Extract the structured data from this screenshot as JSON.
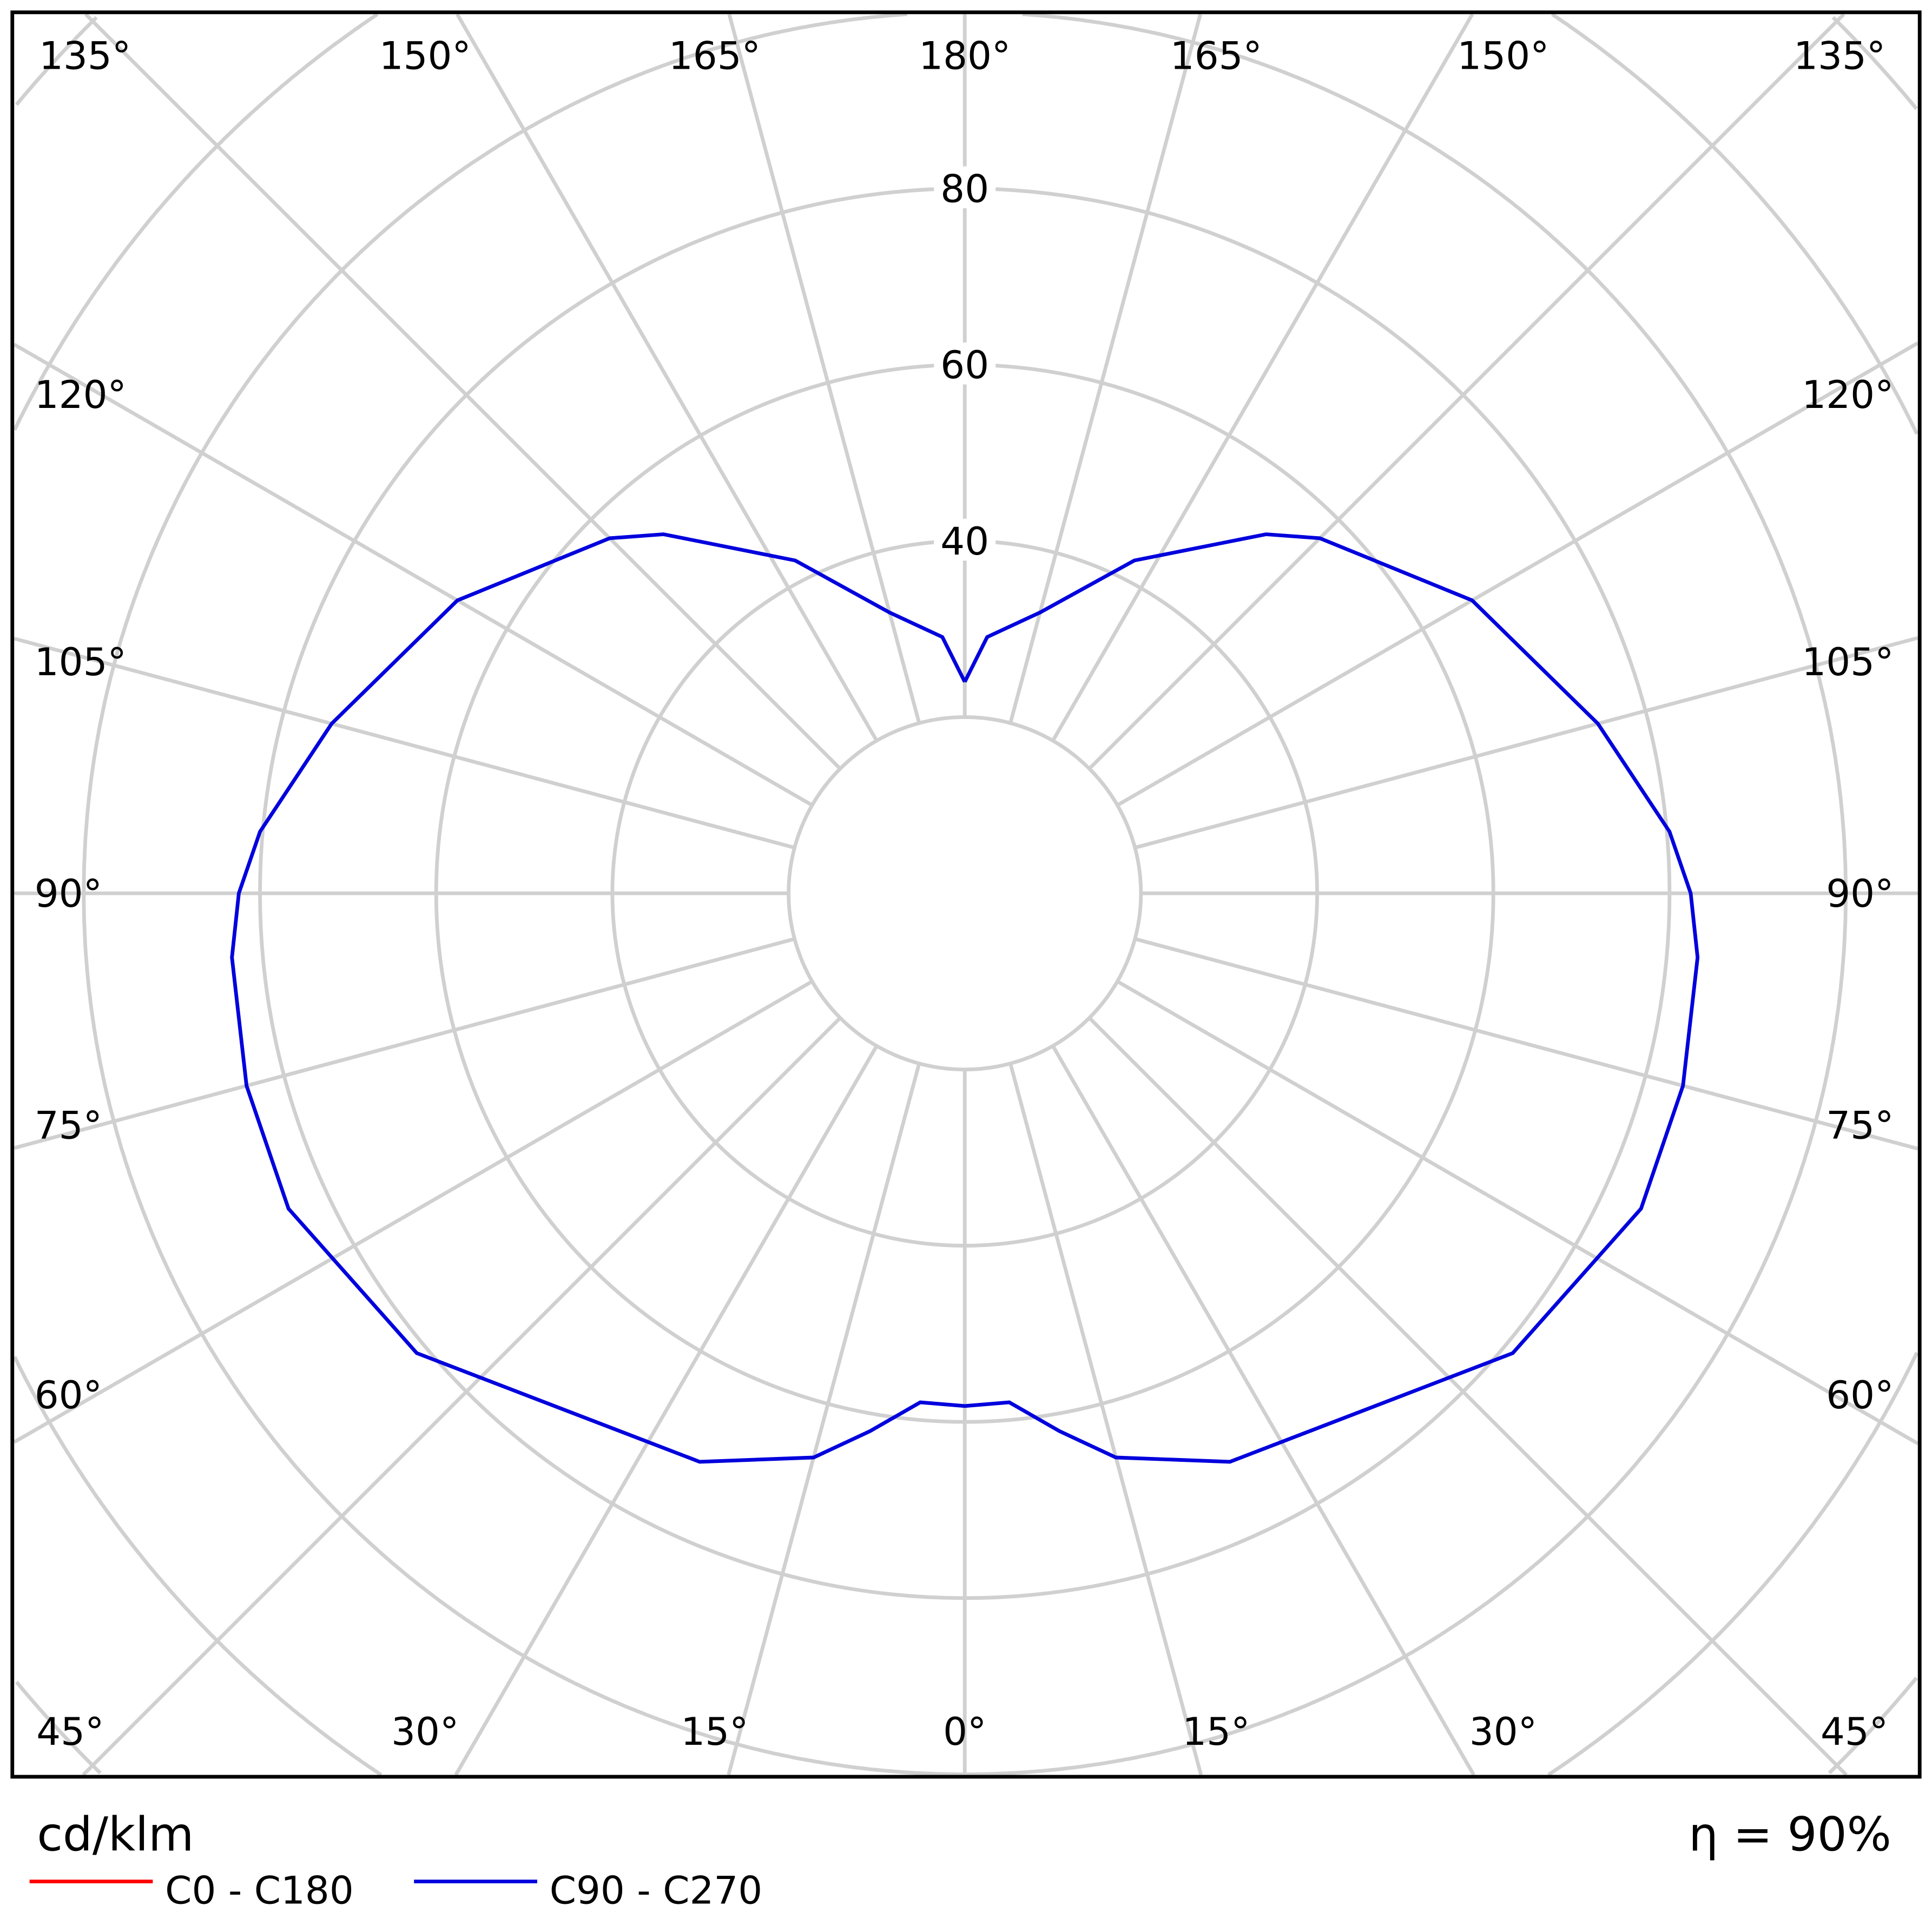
{
  "chart_data": {
    "type": "polar",
    "unit_label": "cd/klm",
    "efficiency_label": "η = 90%",
    "radial_ticks": [
      40,
      60,
      80
    ],
    "radial_rings": [
      20,
      40,
      60,
      80,
      100,
      120,
      140
    ],
    "angle_labels": {
      "bottom": [
        "45°",
        "30°",
        "15°",
        "0°",
        "15°",
        "30°",
        "45°"
      ],
      "left": [
        "60°",
        "75°",
        "90°",
        "105°",
        "120°"
      ],
      "right": [
        "60°",
        "75°",
        "90°",
        "105°",
        "120°"
      ],
      "top": [
        "135°",
        "150°",
        "165°",
        "180°",
        "165°",
        "150°",
        "135°"
      ]
    },
    "grid": true,
    "legend_position": "bottom-left",
    "series": [
      {
        "name": "C0 - C180",
        "color": "#ff0000",
        "gamma": [],
        "values": []
      },
      {
        "name": "C90 - C270",
        "color": "#0000dd",
        "gamma": [
          0,
          5,
          10,
          15,
          25,
          50,
          65,
          75,
          85,
          90,
          95,
          105,
          120,
          135,
          140,
          153,
          165,
          175,
          180
        ],
        "values": [
          58.2,
          58,
          62,
          66.3,
          71.2,
          81.2,
          84.7,
          84.4,
          83.5,
          82.4,
          80.3,
          74.4,
          66.5,
          57,
          53.2,
          42.4,
          33,
          29.2,
          24
        ]
      }
    ]
  }
}
